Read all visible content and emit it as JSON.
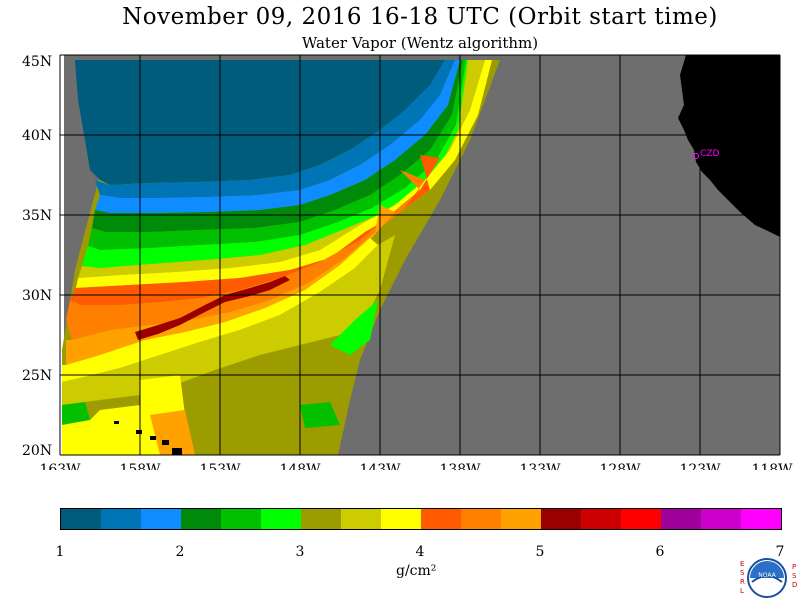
{
  "title": "November 09, 2016  16-18 UTC  (Orbit start time)",
  "subtitle": "Water Vapor (Wentz algorithm)",
  "map": {
    "lat_labels": [
      "45N",
      "40N",
      "35N",
      "30N",
      "25N",
      "20N"
    ],
    "lon_labels": [
      "163W",
      "158W",
      "153W",
      "148W",
      "143W",
      "138W",
      "133W",
      "128W",
      "123W",
      "118W"
    ],
    "lat_range": [
      20,
      45
    ],
    "lon_range": [
      -163,
      -118
    ],
    "grid": true,
    "station_label": "CZD",
    "colors": {
      "no_data": "#6e6e6e",
      "land": "#000000",
      "station": "#ff00ff"
    }
  },
  "colorbar": {
    "colors": [
      "#005c7c",
      "#0075b5",
      "#0f8cff",
      "#008a0a",
      "#00c000",
      "#00ff00",
      "#9c9c00",
      "#cccc00",
      "#ffff00",
      "#ff5a00",
      "#ff8000",
      "#ffa200",
      "#9a0000",
      "#cc0000",
      "#ff0000",
      "#a0009a",
      "#cc00cc",
      "#ff00ff"
    ],
    "ticks": [
      "1",
      "2",
      "3",
      "4",
      "5",
      "6",
      "7"
    ],
    "units": "g/cm²"
  },
  "logo": {
    "left_letters": [
      "E",
      "S",
      "R",
      "L"
    ],
    "right_letters": [
      "P",
      "S",
      "D"
    ],
    "text": "NOAA"
  }
}
